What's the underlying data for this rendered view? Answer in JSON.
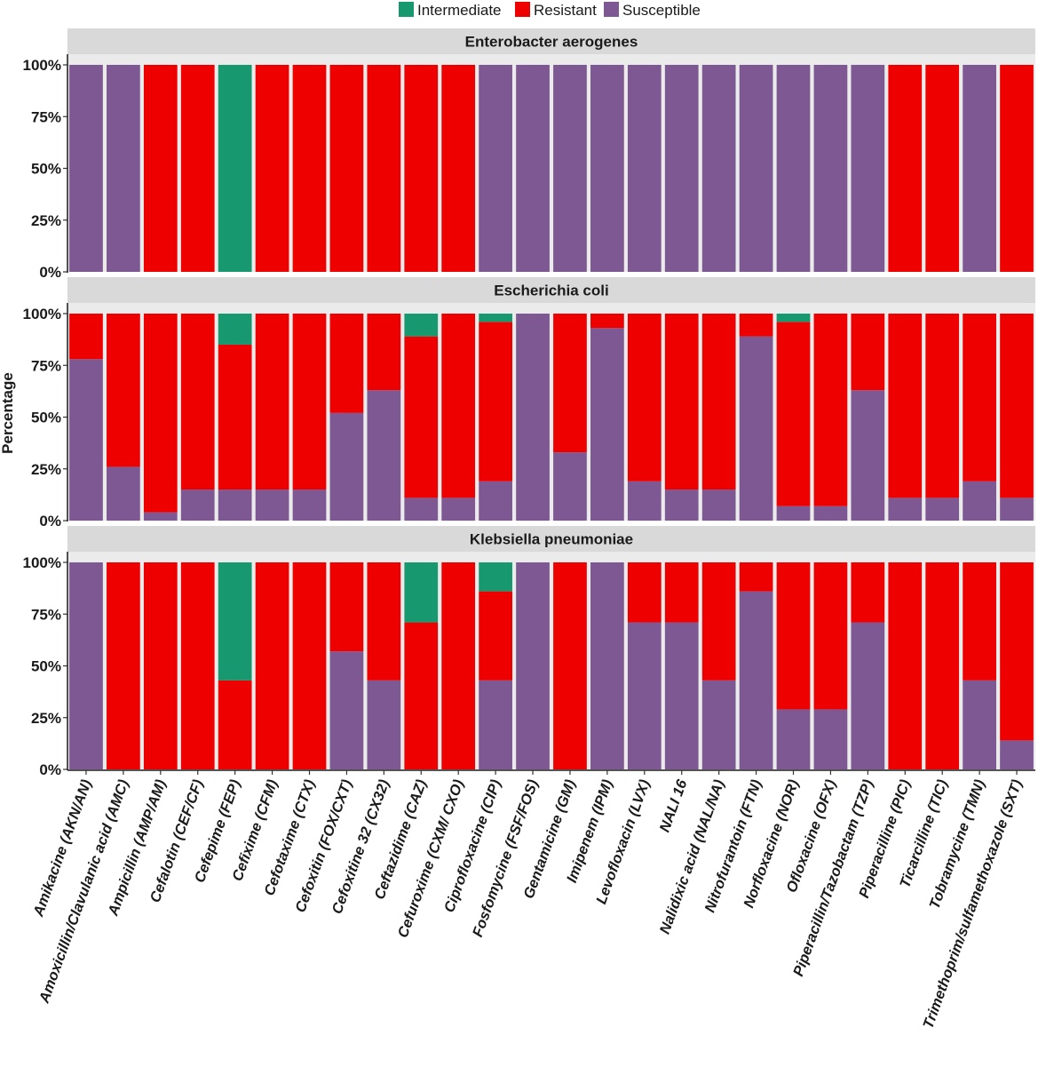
{
  "chart_data": {
    "type": "bar",
    "stacked": true,
    "ylabel": "Percentage",
    "xlabel": "",
    "ylim": [
      0,
      100
    ],
    "y_ticks": [
      "0%",
      "25%",
      "50%",
      "75%",
      "100%"
    ],
    "y_tick_values": [
      0,
      25,
      50,
      75,
      100
    ],
    "legend": {
      "position": "top",
      "entries": [
        {
          "name": "Intermediate",
          "color": "#17986e"
        },
        {
          "name": "Resistant",
          "color": "#ee0000"
        },
        {
          "name": "Susceptible",
          "color": "#7e5893"
        }
      ]
    },
    "categories": [
      "Amikacine (AKN/AN)",
      "Amoxicillin/Clavulanic acid (AMC)",
      "Ampicillin (AMP/AM)",
      "Cefalotin (CEF/CF)",
      "Cefepime (FEP)",
      "Cefixime (CFM)",
      "Cefotaxime (CTX)",
      "Cefoxitin (FOX/CXT)",
      "Cefoxitine 32 (CX32)",
      "Ceftazidime (CAZ)",
      "Cefuroxime (CXM/ CXO)",
      "Ciprofloxacine (CIP)",
      "Fosfomycine (FSF/FOS)",
      "Gentamicine (GM)",
      "Imipenem (IPM)",
      "Levofloxacin (LVX)",
      "NALI 16",
      "Nalidixic acid  (NAL/NA)",
      "Nitrofurantoin (FTN)",
      "Norfloxacine (NOR)",
      "Ofloxacine (OFX)",
      "Piperacillin/Tazobactam (TZP)",
      "Piperacilline (PIC)",
      "Ticarcilline (TIC)",
      "Tobramycine (TMN)",
      "Trimethoprim/sulfamethoxazole (SXT)"
    ],
    "panels": [
      {
        "title": "Enterobacter aerogenes",
        "series": [
          {
            "name": "Susceptible",
            "values": [
              100,
              100,
              0,
              0,
              0,
              0,
              0,
              0,
              0,
              0,
              0,
              100,
              100,
              100,
              100,
              100,
              100,
              100,
              100,
              100,
              100,
              100,
              0,
              0,
              100,
              0
            ]
          },
          {
            "name": "Resistant",
            "values": [
              0,
              0,
              100,
              100,
              0,
              100,
              100,
              100,
              100,
              100,
              100,
              0,
              0,
              0,
              0,
              0,
              0,
              0,
              0,
              0,
              0,
              0,
              100,
              100,
              0,
              100
            ]
          },
          {
            "name": "Intermediate",
            "values": [
              0,
              0,
              0,
              0,
              100,
              0,
              0,
              0,
              0,
              0,
              0,
              0,
              0,
              0,
              0,
              0,
              0,
              0,
              0,
              0,
              0,
              0,
              0,
              0,
              0,
              0
            ]
          }
        ]
      },
      {
        "title": "Escherichia coli",
        "series": [
          {
            "name": "Susceptible",
            "values": [
              78,
              26,
              4,
              15,
              15,
              15,
              15,
              52,
              63,
              11,
              11,
              19,
              100,
              33,
              93,
              19,
              15,
              15,
              89,
              7,
              7,
              63,
              11,
              11,
              19,
              11
            ]
          },
          {
            "name": "Resistant",
            "values": [
              22,
              74,
              96,
              85,
              70,
              85,
              85,
              48,
              37,
              78,
              89,
              77,
              0,
              67,
              7,
              81,
              85,
              85,
              11,
              89,
              93,
              37,
              89,
              89,
              81,
              89
            ]
          },
          {
            "name": "Intermediate",
            "values": [
              0,
              0,
              0,
              0,
              15,
              0,
              0,
              0,
              0,
              11,
              0,
              4,
              0,
              0,
              0,
              0,
              0,
              0,
              0,
              4,
              0,
              0,
              0,
              0,
              0,
              0
            ]
          }
        ]
      },
      {
        "title": "Klebsiella pneumoniae",
        "series": [
          {
            "name": "Susceptible",
            "values": [
              100,
              0,
              0,
              0,
              0,
              0,
              0,
              57,
              43,
              0,
              0,
              43,
              100,
              0,
              100,
              71,
              71,
              43,
              86,
              29,
              29,
              71,
              0,
              0,
              43,
              14
            ]
          },
          {
            "name": "Resistant",
            "values": [
              0,
              100,
              100,
              100,
              43,
              100,
              100,
              43,
              57,
              71,
              100,
              43,
              0,
              100,
              0,
              29,
              29,
              57,
              14,
              71,
              71,
              29,
              100,
              100,
              57,
              86
            ]
          },
          {
            "name": "Intermediate",
            "values": [
              0,
              0,
              0,
              0,
              57,
              0,
              0,
              0,
              0,
              29,
              0,
              14,
              0,
              0,
              0,
              0,
              0,
              0,
              0,
              0,
              0,
              0,
              0,
              0,
              0,
              0
            ]
          }
        ]
      }
    ]
  }
}
